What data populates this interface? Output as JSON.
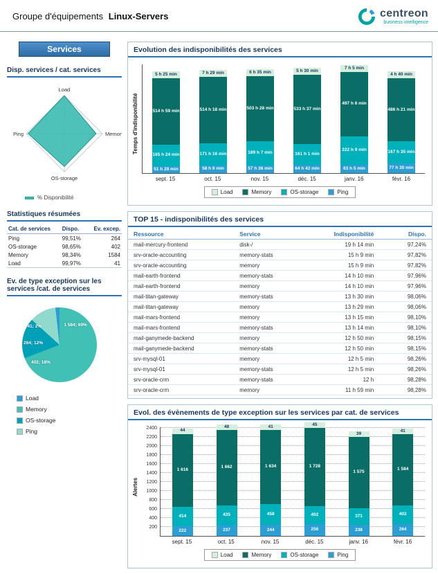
{
  "header": {
    "group_label": "Groupe d'équipements",
    "group_name": "Linux-Servers",
    "brand_name": "centreon",
    "brand_tagline": "business intelligence"
  },
  "sidebar": {
    "title": "Services",
    "radar_section": {
      "heading": "Disp. services / cat. services",
      "legend_label": "% Disponibilité"
    },
    "stats_section": {
      "heading": "Statistiques résumées",
      "columns": [
        "Cat. de services",
        "Dispo.",
        "Ev. excep."
      ],
      "rows": [
        {
          "category": "Ping",
          "availability": "99,51%",
          "exceptions": "264"
        },
        {
          "category": "OS-storage",
          "availability": "98,65%",
          "exceptions": "402"
        },
        {
          "category": "Memory",
          "availability": "98,34%",
          "exceptions": "1584"
        },
        {
          "category": "Load",
          "availability": "99,97%",
          "exceptions": "41"
        }
      ]
    },
    "pie_section": {
      "heading": "Ev. de type exception sur les services /cat. de services",
      "legend": [
        {
          "label": "Load",
          "color": "#2b9ed4"
        },
        {
          "label": "Memory",
          "color": "#41c0b5"
        },
        {
          "label": "OS-storage",
          "color": "#00a0b8"
        },
        {
          "label": "Ping",
          "color": "#8fd9cd"
        }
      ]
    }
  },
  "main": {
    "availability_chart": {
      "title": "Evolution des indisponibilités des services",
      "ylabel": "Temps d'indisponibilité",
      "legend": [
        {
          "label": "Load",
          "color": "#d6eedd"
        },
        {
          "label": "Memory",
          "color": "#0b6e66"
        },
        {
          "label": "OS-storage",
          "color": "#00b0ba"
        },
        {
          "label": "Ping",
          "color": "#2b9ed4"
        }
      ]
    },
    "top15": {
      "title": "TOP 15 - indisponibilités des services",
      "columns": [
        "Ressource",
        "Service",
        "Indisponibilité",
        "Dispo."
      ],
      "rows": [
        [
          "mail-mercury-frontend",
          "disk-/",
          "19 h 14 min",
          "97,24%"
        ],
        [
          "srv-oracle-accounting",
          "memory-stats",
          "15 h 9 min",
          "97,82%"
        ],
        [
          "srv-oracle-accounting",
          "memory",
          "15 h 9 min",
          "97,82%"
        ],
        [
          "mail-earth-frontend",
          "memory-stats",
          "14 h 10 min",
          "97,96%"
        ],
        [
          "mail-earth-frontend",
          "memory",
          "14 h 10 min",
          "97,96%"
        ],
        [
          "mail-titan-gateway",
          "memory-stats",
          "13 h 30 min",
          "98,06%"
        ],
        [
          "mail-titan-gateway",
          "memory",
          "13 h 29 min",
          "98,06%"
        ],
        [
          "mail-mars-frontend",
          "memory",
          "13 h 15 min",
          "98,10%"
        ],
        [
          "mail-mars-frontend",
          "memory-stats",
          "13 h 14 min",
          "98,10%"
        ],
        [
          "mail-ganymede-backend",
          "memory",
          "12 h 50 min",
          "98,15%"
        ],
        [
          "mail-ganymede-backend",
          "memory-stats",
          "12 h 50 min",
          "98,15%"
        ],
        [
          "srv-mysql-01",
          "memory",
          "12 h 5 min",
          "98,26%"
        ],
        [
          "srv-mysql-01",
          "memory-stats",
          "12 h 5 min",
          "98,26%"
        ],
        [
          "srv-oracle-crm",
          "memory-stats",
          "12 h",
          "98,28%"
        ],
        [
          "srv-oracle-crm",
          "memory",
          "11 h 59 min",
          "98,28%"
        ]
      ]
    },
    "events_chart": {
      "title": "Evol. des évènements de type exception sur les services par cat. de services",
      "ylabel": "Alertes",
      "legend": [
        {
          "label": "Load",
          "color": "#d6eedd"
        },
        {
          "label": "Memory",
          "color": "#0b6e66"
        },
        {
          "label": "OS-storage",
          "color": "#00b0ba"
        },
        {
          "label": "Ping",
          "color": "#2b9ed4"
        }
      ]
    }
  },
  "chart_data": [
    {
      "id": "radar",
      "type": "radar",
      "title": "Disp. services / cat. services",
      "axes": [
        "Load",
        "Memory",
        "OS-storage",
        "Ping"
      ],
      "values": [
        99.97,
        98.34,
        98.65,
        99.51
      ],
      "series_label": "% Disponibilité",
      "scale": [
        90,
        100
      ]
    },
    {
      "id": "availability",
      "type": "bar",
      "stacked": true,
      "title": "Evolution des indisponibilités des services",
      "ylabel": "Temps d'indisponibilité",
      "unit": "hours",
      "categories": [
        "sept. 15",
        "oct. 15",
        "nov. 15",
        "déc. 15",
        "janv. 16",
        "févr. 16"
      ],
      "ylim": [
        0,
        840
      ],
      "series": [
        {
          "name": "Ping",
          "color": "#2b9ed4",
          "values": [
            51.48,
            58.15,
            57.6,
            64.7,
            63.08,
            77.5
          ],
          "labels": [
            "51 h 29 min",
            "58 h 9 min",
            "57 h 36 min",
            "64 h 42 min",
            "63 h 5 min",
            "77 h 30 min"
          ]
        },
        {
          "name": "OS-storage",
          "color": "#00b0ba",
          "values": [
            165.4,
            171.27,
            189.12,
            161.02,
            222.15,
            167.58
          ],
          "labels": [
            "165 h 24 min",
            "171 h 16 min",
            "189 h 7 min",
            "161 h 1 min",
            "222 h 9 min",
            "167 h 35 min"
          ]
        },
        {
          "name": "Memory",
          "color": "#0b6e66",
          "values": [
            514.98,
            514.3,
            503.47,
            533.62,
            497.1,
            486.35
          ],
          "labels": [
            "514 h 59 min",
            "514 h 18 min",
            "503 h 28 min",
            "533 h 37 min",
            "497 h 6 min",
            "486 h 21 min"
          ]
        },
        {
          "name": "Load",
          "color": "#d6eedd",
          "text_color": "#17375e",
          "values": [
            5.42,
            7.48,
            6.58,
            5.5,
            7.08,
            4.67
          ],
          "labels": [
            "5 h 25 min",
            "7 h 29 min",
            "6 h 35 min",
            "5 h 30 min",
            "7 h 5 min",
            "4 h 40 min"
          ]
        }
      ]
    },
    {
      "id": "exceptions_pie",
      "type": "pie",
      "title": "Ev. de type exception sur les services /cat. de services",
      "slices": [
        {
          "name": "Memory",
          "value": 1584,
          "label": "1 584; 69%",
          "color": "#41c0b5"
        },
        {
          "name": "OS-storage",
          "value": 402,
          "label": "402; 18%",
          "color": "#00a0b8"
        },
        {
          "name": "Ping",
          "value": 264,
          "label": "264; 12%",
          "color": "#8fd9cd"
        },
        {
          "name": "Load",
          "value": 41,
          "label": "41; 2%",
          "color": "#2b9ed4"
        }
      ]
    },
    {
      "id": "events",
      "type": "bar",
      "stacked": true,
      "title": "Evol. des évènements de type exception sur les services par cat. de services",
      "ylabel": "Alertes",
      "categories": [
        "sept. 15",
        "oct. 15",
        "nov. 15",
        "déc. 15",
        "janv. 16",
        "févr. 16"
      ],
      "ylim": [
        0,
        2400
      ],
      "ytick_step": 200,
      "series": [
        {
          "name": "Ping",
          "color": "#2b9ed4",
          "values": [
            222,
            237,
            244,
            256,
            238,
            264
          ],
          "labels": [
            "222",
            "237",
            "244",
            "256",
            "238",
            "264"
          ]
        },
        {
          "name": "OS-storage",
          "color": "#00b0ba",
          "values": [
            414,
            435,
            458,
            402,
            371,
            402
          ],
          "labels": [
            "414",
            "435",
            "458",
            "402",
            "371",
            "402"
          ]
        },
        {
          "name": "Memory",
          "color": "#0b6e66",
          "values": [
            1616,
            1662,
            1634,
            1728,
            1575,
            1584
          ],
          "labels": [
            "1 616",
            "1 662",
            "1 634",
            "1 728",
            "1 575",
            "1 584"
          ]
        },
        {
          "name": "Load",
          "color": "#d6eedd",
          "text_color": "#17375e",
          "values": [
            44,
            48,
            41,
            45,
            39,
            41
          ],
          "labels": [
            "44",
            "48",
            "41",
            "45",
            "39",
            "41"
          ]
        }
      ]
    }
  ]
}
